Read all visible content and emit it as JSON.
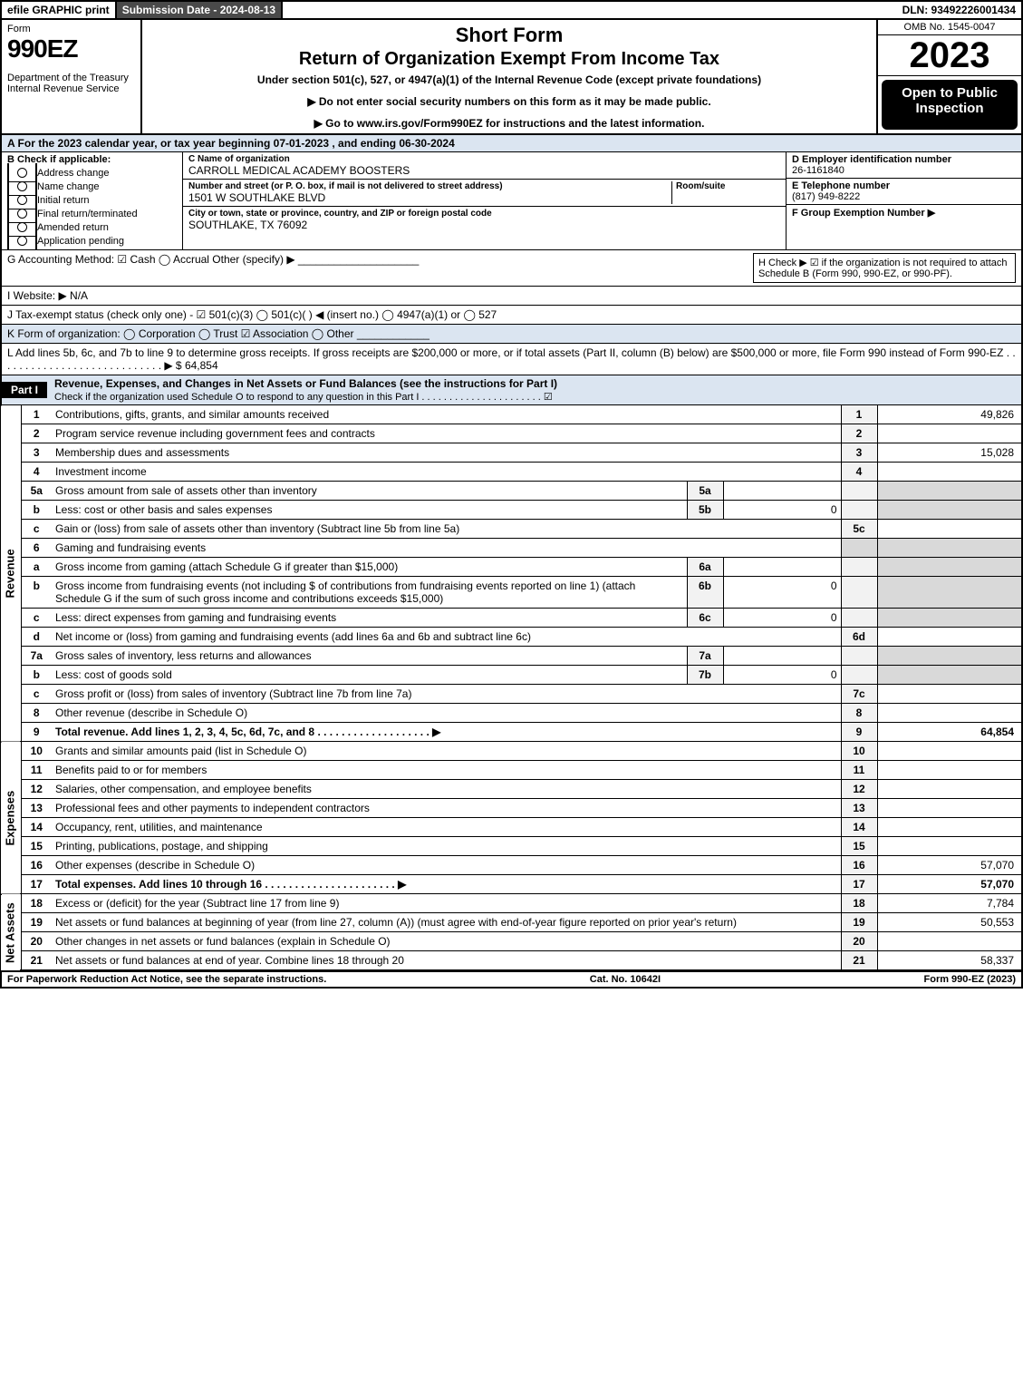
{
  "topbar": {
    "efile": "efile GRAPHIC print",
    "subdate_label": "Submission Date - 2024-08-13",
    "dln": "DLN: 93492226001434"
  },
  "header": {
    "form_word": "Form",
    "form_no": "990EZ",
    "dept1": "Department of the Treasury",
    "dept2": "Internal Revenue Service",
    "title1": "Short Form",
    "title2": "Return of Organization Exempt From Income Tax",
    "subtitle": "Under section 501(c), 527, or 4947(a)(1) of the Internal Revenue Code (except private foundations)",
    "warn": "▶ Do not enter social security numbers on this form as it may be made public.",
    "goto": "▶ Go to www.irs.gov/Form990EZ for instructions and the latest information.",
    "omb": "OMB No. 1545-0047",
    "year": "2023",
    "open_public": "Open to Public Inspection"
  },
  "lineA": "A  For the 2023 calendar year, or tax year beginning 07-01-2023 , and ending 06-30-2024",
  "boxB": {
    "label": "B  Check if applicable:",
    "opts": [
      "Address change",
      "Name change",
      "Initial return",
      "Final return/terminated",
      "Amended return",
      "Application pending"
    ]
  },
  "boxC": {
    "name_label": "C Name of organization",
    "name": "CARROLL MEDICAL ACADEMY BOOSTERS",
    "addr_label": "Number and street (or P. O. box, if mail is not delivered to street address)",
    "addr": "1501 W SOUTHLAKE BLVD",
    "room_label": "Room/suite",
    "city_label": "City or town, state or province, country, and ZIP or foreign postal code",
    "city": "SOUTHLAKE, TX  76092"
  },
  "boxD": {
    "label": "D Employer identification number",
    "val": "26-1161840"
  },
  "boxE": {
    "label": "E Telephone number",
    "val": "(817) 949-8222"
  },
  "boxF": {
    "label": "F Group Exemption Number  ▶",
    "val": ""
  },
  "lineG": "G Accounting Method:   ☑ Cash  ◯ Accrual  Other (specify) ▶ ____________________",
  "lineH": "H  Check ▶ ☑ if the organization is not required to attach Schedule B (Form 990, 990-EZ, or 990-PF).",
  "lineI": "I Website: ▶ N/A",
  "lineJ": "J Tax-exempt status (check only one) -  ☑ 501(c)(3)  ◯ 501(c)(  ) ◀ (insert no.)  ◯ 4947(a)(1) or  ◯ 527",
  "lineK": "K Form of organization:   ◯ Corporation   ◯ Trust   ☑ Association   ◯ Other  ____________",
  "lineL": "L Add lines 5b, 6c, and 7b to line 9 to determine gross receipts. If gross receipts are $200,000 or more, or if total assets (Part II, column (B) below) are $500,000 or more, file Form 990 instead of Form 990-EZ  . . . . . . . . . . . . . . . . . . . . . . . . . . . .  ▶ $ 64,854",
  "part1": {
    "label": "Part I",
    "title": "Revenue, Expenses, and Changes in Net Assets or Fund Balances (see the instructions for Part I)",
    "check_line": "Check if the organization used Schedule O to respond to any question in this Part I . . . . . . . . . . . . . . . . . . . . . .   ☑"
  },
  "sections": {
    "revenue": "Revenue",
    "expenses": "Expenses",
    "netassets": "Net Assets"
  },
  "rows": [
    {
      "n": "1",
      "d": "Contributions, gifts, grants, and similar amounts received",
      "num": "1",
      "amt": "49,826"
    },
    {
      "n": "2",
      "d": "Program service revenue including government fees and contracts",
      "num": "2",
      "amt": ""
    },
    {
      "n": "3",
      "d": "Membership dues and assessments",
      "num": "3",
      "amt": "15,028"
    },
    {
      "n": "4",
      "d": "Investment income",
      "num": "4",
      "amt": ""
    },
    {
      "n": "5a",
      "d": "Gross amount from sale of assets other than inventory",
      "sub": "5a",
      "subval": "",
      "num": "",
      "amt": "",
      "shade_amt": true
    },
    {
      "n": "b",
      "d": "Less: cost or other basis and sales expenses",
      "sub": "5b",
      "subval": "0",
      "num": "",
      "amt": "",
      "shade_amt": true
    },
    {
      "n": "c",
      "d": "Gain or (loss) from sale of assets other than inventory (Subtract line 5b from line 5a)",
      "num": "5c",
      "amt": ""
    },
    {
      "n": "6",
      "d": "Gaming and fundraising events",
      "num": "",
      "amt": "",
      "shade_num": true,
      "shade_amt": true
    },
    {
      "n": "a",
      "d": "Gross income from gaming (attach Schedule G if greater than $15,000)",
      "sub": "6a",
      "subval": "",
      "num": "",
      "amt": "",
      "shade_amt": true
    },
    {
      "n": "b",
      "d": "Gross income from fundraising events (not including $                    of contributions from fundraising events reported on line 1) (attach Schedule G if the sum of such gross income and contributions exceeds $15,000)",
      "sub": "6b",
      "subval": "0",
      "num": "",
      "amt": "",
      "shade_amt": true
    },
    {
      "n": "c",
      "d": "Less: direct expenses from gaming and fundraising events",
      "sub": "6c",
      "subval": "0",
      "num": "",
      "amt": "",
      "shade_amt": true
    },
    {
      "n": "d",
      "d": "Net income or (loss) from gaming and fundraising events (add lines 6a and 6b and subtract line 6c)",
      "num": "6d",
      "amt": ""
    },
    {
      "n": "7a",
      "d": "Gross sales of inventory, less returns and allowances",
      "sub": "7a",
      "subval": "",
      "num": "",
      "amt": "",
      "shade_amt": true
    },
    {
      "n": "b",
      "d": "Less: cost of goods sold",
      "sub": "7b",
      "subval": "0",
      "num": "",
      "amt": "",
      "shade_amt": true
    },
    {
      "n": "c",
      "d": "Gross profit or (loss) from sales of inventory (Subtract line 7b from line 7a)",
      "num": "7c",
      "amt": ""
    },
    {
      "n": "8",
      "d": "Other revenue (describe in Schedule O)",
      "num": "8",
      "amt": ""
    },
    {
      "n": "9",
      "d": "Total revenue. Add lines 1, 2, 3, 4, 5c, 6d, 7c, and 8  . . . . . . . . . . . . . . . . . . .  ▶",
      "num": "9",
      "amt": "64,854",
      "bold": true
    }
  ],
  "expRows": [
    {
      "n": "10",
      "d": "Grants and similar amounts paid (list in Schedule O)",
      "num": "10",
      "amt": ""
    },
    {
      "n": "11",
      "d": "Benefits paid to or for members",
      "num": "11",
      "amt": ""
    },
    {
      "n": "12",
      "d": "Salaries, other compensation, and employee benefits",
      "num": "12",
      "amt": ""
    },
    {
      "n": "13",
      "d": "Professional fees and other payments to independent contractors",
      "num": "13",
      "amt": ""
    },
    {
      "n": "14",
      "d": "Occupancy, rent, utilities, and maintenance",
      "num": "14",
      "amt": ""
    },
    {
      "n": "15",
      "d": "Printing, publications, postage, and shipping",
      "num": "15",
      "amt": ""
    },
    {
      "n": "16",
      "d": "Other expenses (describe in Schedule O)",
      "num": "16",
      "amt": "57,070"
    },
    {
      "n": "17",
      "d": "Total expenses. Add lines 10 through 16   . . . . . . . . . . . . . . . . . . . . . .  ▶",
      "num": "17",
      "amt": "57,070",
      "bold": true
    }
  ],
  "naRows": [
    {
      "n": "18",
      "d": "Excess or (deficit) for the year (Subtract line 17 from line 9)",
      "num": "18",
      "amt": "7,784"
    },
    {
      "n": "19",
      "d": "Net assets or fund balances at beginning of year (from line 27, column (A)) (must agree with end-of-year figure reported on prior year's return)",
      "num": "19",
      "amt": "50,553"
    },
    {
      "n": "20",
      "d": "Other changes in net assets or fund balances (explain in Schedule O)",
      "num": "20",
      "amt": ""
    },
    {
      "n": "21",
      "d": "Net assets or fund balances at end of year. Combine lines 18 through 20",
      "num": "21",
      "amt": "58,337"
    }
  ],
  "footer": {
    "left": "For Paperwork Reduction Act Notice, see the separate instructions.",
    "mid": "Cat. No. 10642I",
    "right": "Form 990-EZ (2023)"
  }
}
